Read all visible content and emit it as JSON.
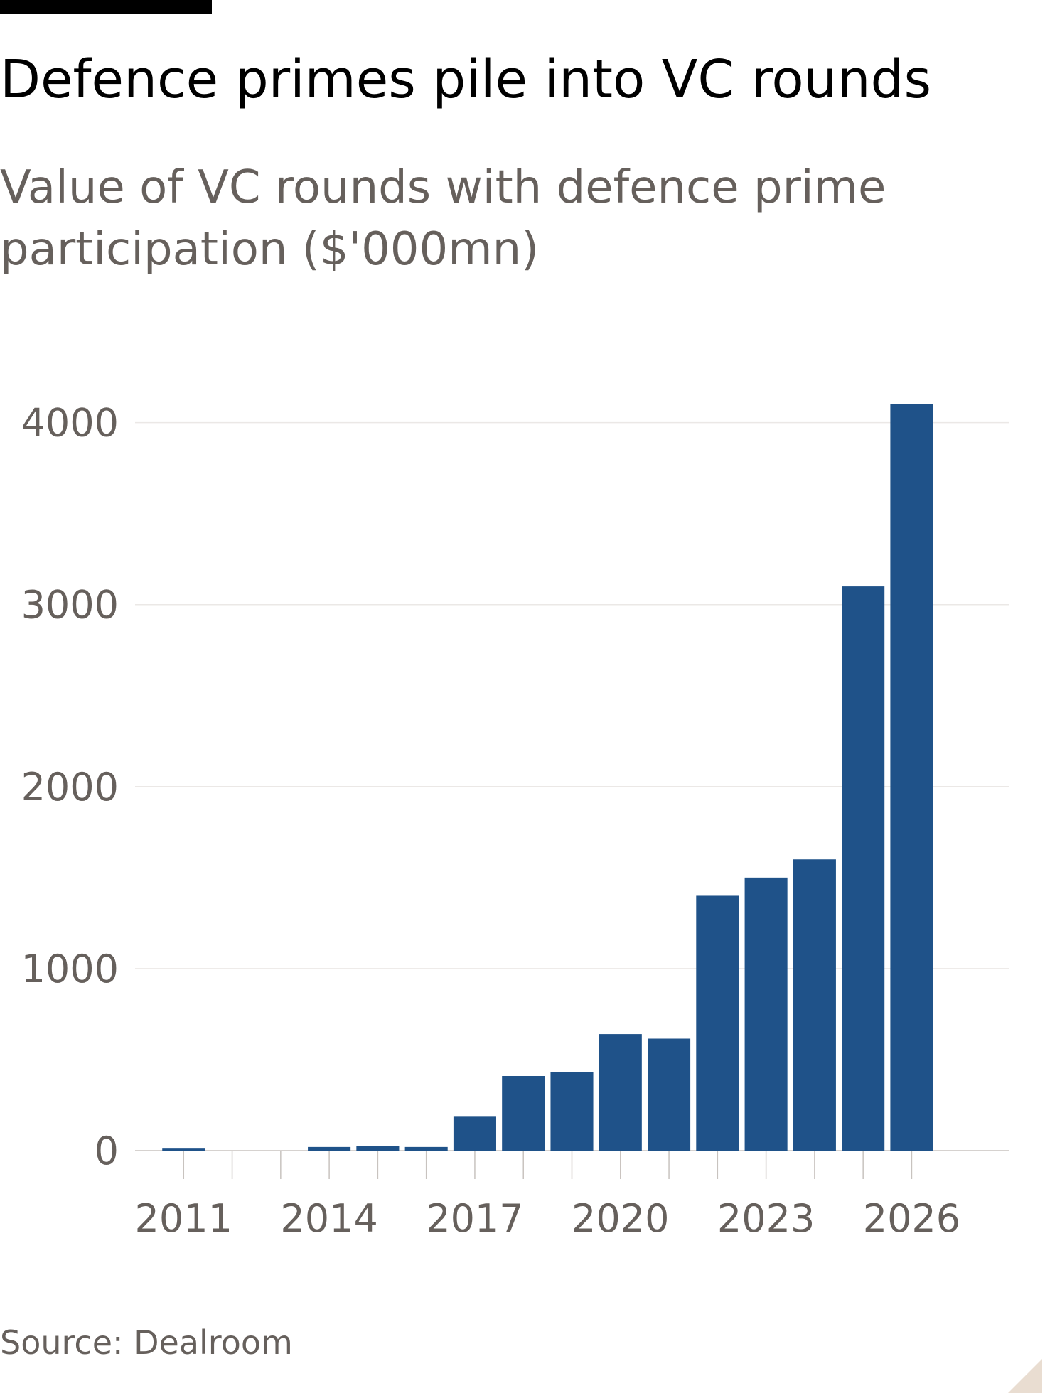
{
  "chart_data": {
    "type": "bar",
    "title": "Defence primes pile into VC rounds",
    "subtitle": [
      "Value of VC rounds with defence prime",
      "participation ($'000mn)"
    ],
    "source": "Source: Dealroom",
    "x": [
      2011,
      2012,
      2013,
      2014,
      2015,
      2016,
      2017,
      2018,
      2019,
      2020,
      2021,
      2022,
      2023,
      2024,
      2025,
      2026
    ],
    "values": [
      15,
      null,
      null,
      20,
      25,
      20,
      190,
      410,
      430,
      640,
      615,
      1400,
      1500,
      1600,
      3100,
      4100
    ],
    "color": "#1f5289",
    "xlim": [
      2010,
      2028
    ],
    "xticks": [
      2011,
      2014,
      2017,
      2020,
      2023,
      2026
    ],
    "ylim": [
      0,
      4100
    ],
    "yticks": [
      0,
      1000,
      2000,
      3000,
      4000
    ],
    "grid": true
  }
}
